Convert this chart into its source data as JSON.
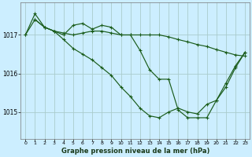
{
  "title": "Graphe pression niveau de la mer (hPa)",
  "background_color": "#cceeff",
  "grid_color": "#aacccc",
  "line_color": "#1a5c1a",
  "x_ticks": [
    0,
    1,
    2,
    3,
    4,
    5,
    6,
    7,
    8,
    9,
    10,
    11,
    12,
    13,
    14,
    15,
    16,
    17,
    18,
    19,
    20,
    21,
    22,
    23
  ],
  "y_ticks": [
    1015,
    1016,
    1017
  ],
  "ylim": [
    1014.3,
    1017.85
  ],
  "xlim": [
    -0.5,
    23.5
  ],
  "series1_x": [
    0,
    1,
    2,
    3,
    4,
    5,
    6,
    7,
    8,
    9,
    10,
    11,
    12,
    13,
    14,
    15,
    16,
    17,
    18,
    19,
    20,
    21,
    22,
    23
  ],
  "series1_y": [
    1017.0,
    1017.55,
    1017.2,
    1017.1,
    1017.05,
    1017.0,
    1017.05,
    1017.1,
    1017.1,
    1017.05,
    1017.0,
    1017.0,
    1017.0,
    1017.0,
    1017.0,
    1016.95,
    1016.88,
    1016.82,
    1016.75,
    1016.7,
    1016.62,
    1016.55,
    1016.48,
    1016.45
  ],
  "series2_x": [
    0,
    1,
    2,
    3,
    4,
    5,
    6,
    7,
    8,
    9,
    10,
    11,
    12,
    13,
    14,
    15,
    16,
    17,
    18,
    19,
    20,
    21,
    22,
    23
  ],
  "series2_y": [
    1017.0,
    1017.4,
    1017.2,
    1017.1,
    1017.0,
    1017.25,
    1017.3,
    1017.15,
    1017.25,
    1017.2,
    1017.0,
    1017.0,
    1016.6,
    1016.1,
    1015.85,
    1015.85,
    1015.05,
    1014.85,
    1014.85,
    1014.85,
    1015.3,
    1015.75,
    1016.2,
    1016.55
  ],
  "series3_x": [
    1,
    2,
    3,
    4,
    5,
    6,
    7,
    8,
    9,
    10,
    11,
    12,
    13,
    14,
    15,
    16,
    17,
    18,
    19,
    20,
    21,
    22,
    23
  ],
  "series3_y": [
    1017.4,
    1017.2,
    1017.1,
    1016.88,
    1016.65,
    1016.5,
    1016.35,
    1016.15,
    1015.95,
    1015.65,
    1015.4,
    1015.1,
    1014.9,
    1014.85,
    1015.0,
    1015.1,
    1015.0,
    1014.95,
    1015.2,
    1015.3,
    1015.65,
    1016.15,
    1016.55
  ]
}
